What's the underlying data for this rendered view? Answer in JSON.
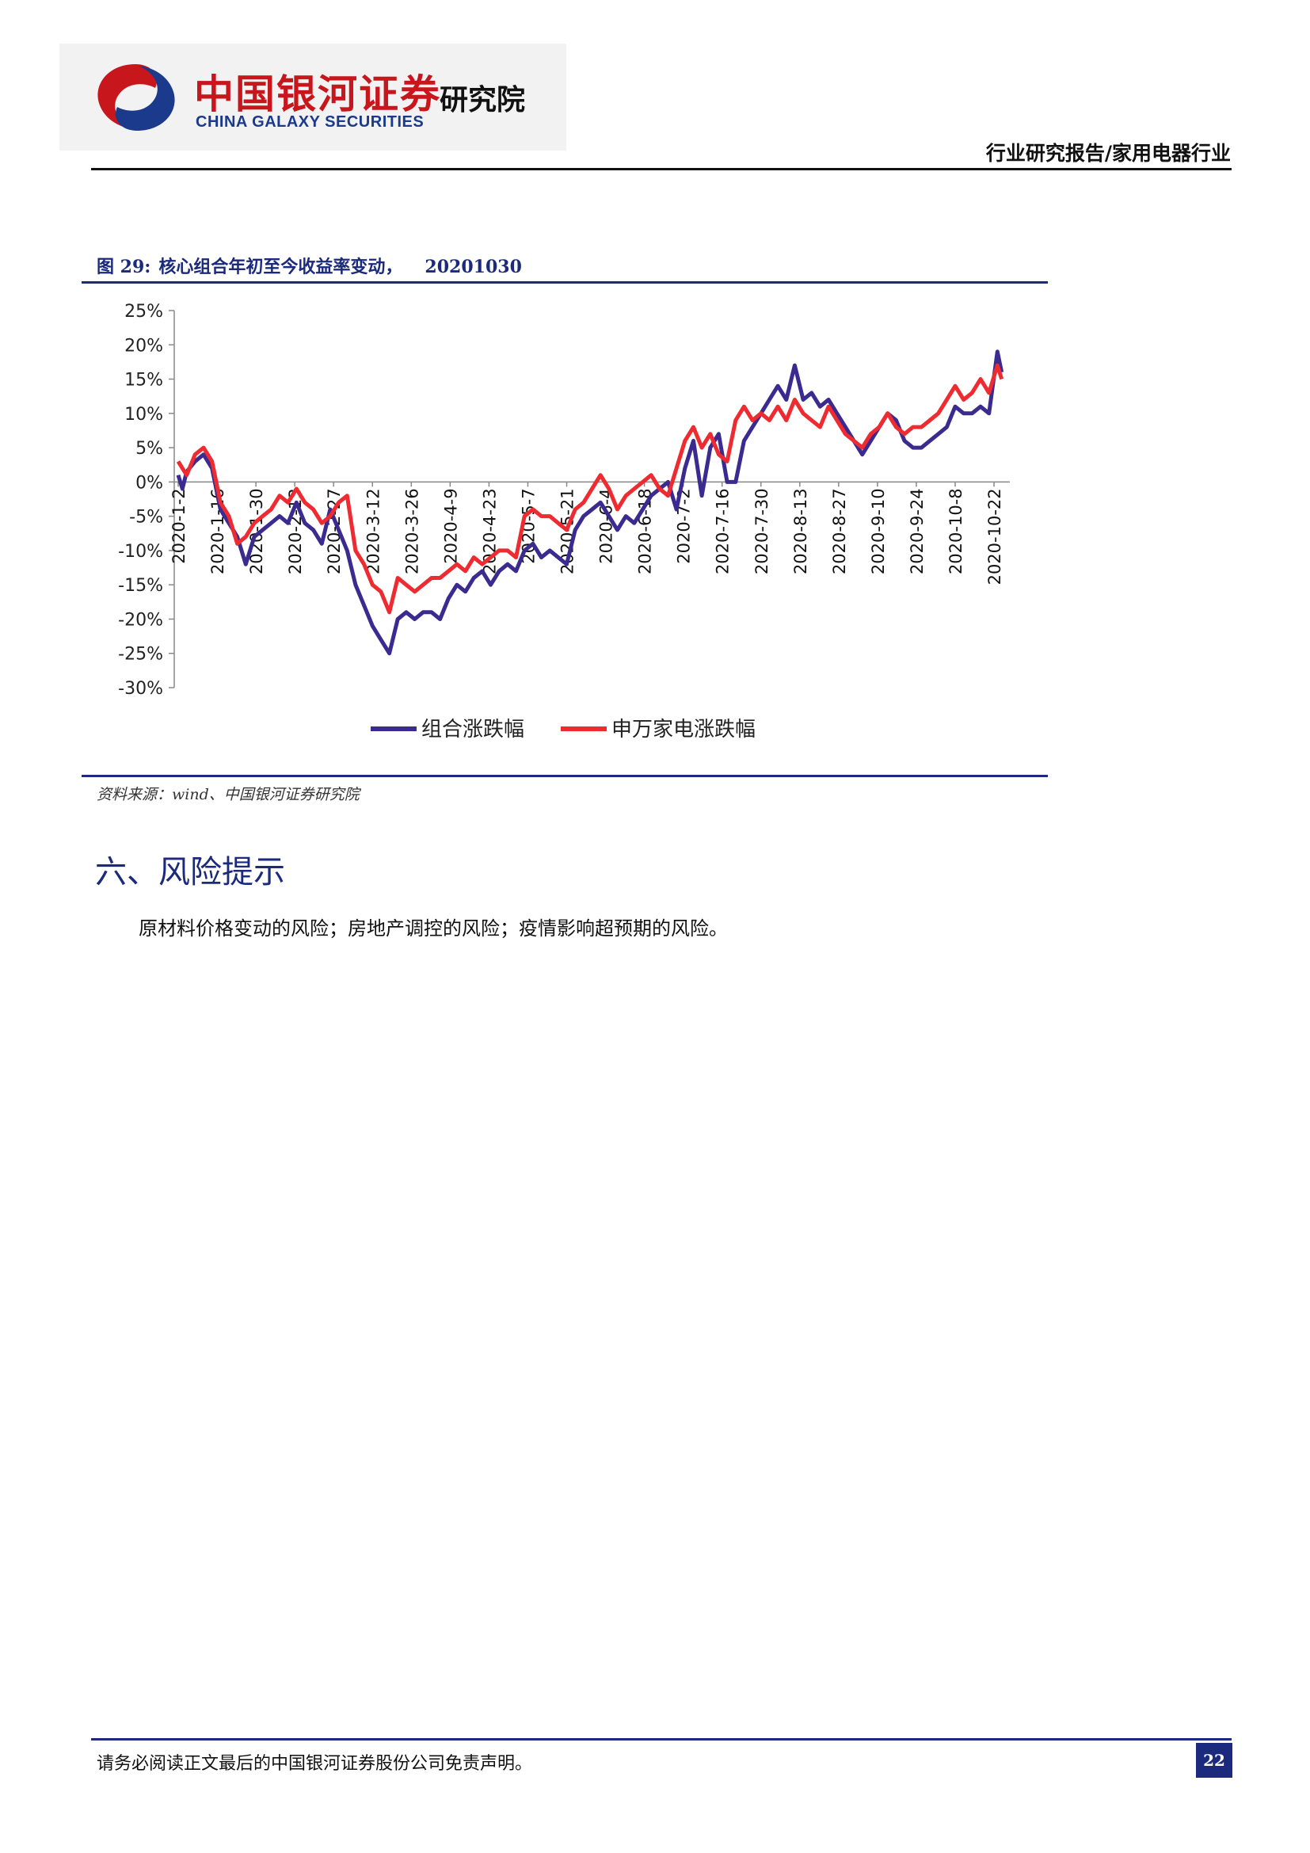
{
  "header": {
    "logo_cn": "中国银河证券",
    "logo_en": "CHINA GALAXY SECURITIES",
    "institute": "研究院",
    "report_type": "行业研究报告/家用电器行业",
    "brand_red": "#c8161d",
    "brand_blue": "#1b2a7c"
  },
  "figure": {
    "number": "图 29:",
    "title": "核心组合年初至今收益率变动，",
    "date": "20201030",
    "source": "资料来源：wind、中国银河证券研究院"
  },
  "chart_data": {
    "type": "line",
    "x_labels": [
      "2020-1-2",
      "2020-1-16",
      "2020-1-30",
      "2020-2-13",
      "2020-2-27",
      "2020-3-12",
      "2020-3-26",
      "2020-4-9",
      "2020-4-23",
      "2020-5-7",
      "2020-5-21",
      "2020-6-4",
      "2020-6-18",
      "2020-7-2",
      "2020-7-16",
      "2020-7-30",
      "2020-8-13",
      "2020-8-27",
      "2020-9-10",
      "2020-9-24",
      "2020-10-8",
      "2020-10-22"
    ],
    "y_ticks": [
      "25%",
      "20%",
      "15%",
      "10%",
      "5%",
      "0%",
      "-5%",
      "-10%",
      "-15%",
      "-20%",
      "-25%",
      "-30%"
    ],
    "ylim": [
      -30,
      25
    ],
    "legend_position": "bottom",
    "series": [
      {
        "name": "组合涨跌幅",
        "color": "#3b2a8f",
        "points": [
          [
            0,
            1
          ],
          [
            0.5,
            -1
          ],
          [
            1,
            1.5
          ],
          [
            2,
            3
          ],
          [
            3,
            4
          ],
          [
            4,
            2
          ],
          [
            5,
            -4
          ],
          [
            6,
            -6
          ],
          [
            7,
            -8
          ],
          [
            8,
            -12
          ],
          [
            9,
            -8
          ],
          [
            10,
            -7
          ],
          [
            11,
            -6
          ],
          [
            12,
            -5
          ],
          [
            13,
            -6
          ],
          [
            14,
            -3
          ],
          [
            15,
            -6
          ],
          [
            16,
            -7
          ],
          [
            17,
            -9
          ],
          [
            18,
            -4
          ],
          [
            19,
            -7
          ],
          [
            20,
            -10
          ],
          [
            21,
            -15
          ],
          [
            22,
            -18
          ],
          [
            23,
            -21
          ],
          [
            24,
            -23
          ],
          [
            25,
            -25
          ],
          [
            26,
            -20
          ],
          [
            27,
            -19
          ],
          [
            28,
            -20
          ],
          [
            29,
            -19
          ],
          [
            30,
            -19
          ],
          [
            31,
            -20
          ],
          [
            32,
            -17
          ],
          [
            33,
            -15
          ],
          [
            34,
            -16
          ],
          [
            35,
            -14
          ],
          [
            36,
            -13
          ],
          [
            37,
            -15
          ],
          [
            38,
            -13
          ],
          [
            39,
            -12
          ],
          [
            40,
            -13
          ],
          [
            41,
            -10
          ],
          [
            42,
            -9
          ],
          [
            43,
            -11
          ],
          [
            44,
            -10
          ],
          [
            45,
            -11
          ],
          [
            46,
            -12
          ],
          [
            47,
            -7
          ],
          [
            48,
            -5
          ],
          [
            49,
            -4
          ],
          [
            50,
            -3
          ],
          [
            51,
            -5
          ],
          [
            52,
            -7
          ],
          [
            53,
            -5
          ],
          [
            54,
            -6
          ],
          [
            55,
            -4
          ],
          [
            56,
            -2
          ],
          [
            57,
            -1
          ],
          [
            58,
            0
          ],
          [
            59,
            -4
          ],
          [
            60,
            2
          ],
          [
            61,
            6
          ],
          [
            62,
            -2
          ],
          [
            63,
            5
          ],
          [
            64,
            7
          ],
          [
            65,
            0
          ],
          [
            66,
            0
          ],
          [
            67,
            6
          ],
          [
            68,
            8
          ],
          [
            69,
            10
          ],
          [
            70,
            12
          ],
          [
            71,
            14
          ],
          [
            72,
            12
          ],
          [
            73,
            17
          ],
          [
            74,
            12
          ],
          [
            75,
            13
          ],
          [
            76,
            11
          ],
          [
            77,
            12
          ],
          [
            78,
            10
          ],
          [
            79,
            8
          ],
          [
            80,
            6
          ],
          [
            81,
            4
          ],
          [
            82,
            6
          ],
          [
            83,
            8
          ],
          [
            84,
            10
          ],
          [
            85,
            9
          ],
          [
            86,
            6
          ],
          [
            87,
            5
          ],
          [
            88,
            5
          ],
          [
            89,
            6
          ],
          [
            90,
            7
          ],
          [
            91,
            8
          ],
          [
            92,
            11
          ],
          [
            93,
            10
          ],
          [
            94,
            10
          ],
          [
            95,
            11
          ],
          [
            96,
            10
          ],
          [
            97,
            19
          ],
          [
            97.5,
            16
          ]
        ]
      },
      {
        "name": "申万家电涨跌幅",
        "color": "#ee2b30",
        "points": [
          [
            0,
            3
          ],
          [
            0.5,
            2
          ],
          [
            1,
            1
          ],
          [
            2,
            4
          ],
          [
            3,
            5
          ],
          [
            4,
            3
          ],
          [
            5,
            -3
          ],
          [
            6,
            -5
          ],
          [
            7,
            -9
          ],
          [
            8,
            -8
          ],
          [
            9,
            -6
          ],
          [
            10,
            -5
          ],
          [
            11,
            -4
          ],
          [
            12,
            -2
          ],
          [
            13,
            -3
          ],
          [
            14,
            -1
          ],
          [
            15,
            -3
          ],
          [
            16,
            -4
          ],
          [
            17,
            -6
          ],
          [
            18,
            -5
          ],
          [
            19,
            -3
          ],
          [
            20,
            -2
          ],
          [
            21,
            -10
          ],
          [
            22,
            -12
          ],
          [
            23,
            -15
          ],
          [
            24,
            -16
          ],
          [
            25,
            -19
          ],
          [
            26,
            -14
          ],
          [
            27,
            -15
          ],
          [
            28,
            -16
          ],
          [
            29,
            -15
          ],
          [
            30,
            -14
          ],
          [
            31,
            -14
          ],
          [
            32,
            -13
          ],
          [
            33,
            -12
          ],
          [
            34,
            -13
          ],
          [
            35,
            -11
          ],
          [
            36,
            -12
          ],
          [
            37,
            -11
          ],
          [
            38,
            -10
          ],
          [
            39,
            -10
          ],
          [
            40,
            -11
          ],
          [
            41,
            -5
          ],
          [
            42,
            -4
          ],
          [
            43,
            -5
          ],
          [
            44,
            -5
          ],
          [
            45,
            -6
          ],
          [
            46,
            -7
          ],
          [
            47,
            -4
          ],
          [
            48,
            -3
          ],
          [
            49,
            -1
          ],
          [
            50,
            1
          ],
          [
            51,
            -1
          ],
          [
            52,
            -4
          ],
          [
            53,
            -2
          ],
          [
            54,
            -1
          ],
          [
            55,
            0
          ],
          [
            56,
            1
          ],
          [
            57,
            -1
          ],
          [
            58,
            -2
          ],
          [
            59,
            2
          ],
          [
            60,
            6
          ],
          [
            61,
            8
          ],
          [
            62,
            5
          ],
          [
            63,
            7
          ],
          [
            64,
            4
          ],
          [
            65,
            3
          ],
          [
            66,
            9
          ],
          [
            67,
            11
          ],
          [
            68,
            9
          ],
          [
            69,
            10
          ],
          [
            70,
            9
          ],
          [
            71,
            11
          ],
          [
            72,
            9
          ],
          [
            73,
            12
          ],
          [
            74,
            10
          ],
          [
            75,
            9
          ],
          [
            76,
            8
          ],
          [
            77,
            11
          ],
          [
            78,
            9
          ],
          [
            79,
            7
          ],
          [
            80,
            6
          ],
          [
            81,
            5
          ],
          [
            82,
            7
          ],
          [
            83,
            8
          ],
          [
            84,
            10
          ],
          [
            85,
            8
          ],
          [
            86,
            7
          ],
          [
            87,
            8
          ],
          [
            88,
            8
          ],
          [
            89,
            9
          ],
          [
            90,
            10
          ],
          [
            91,
            12
          ],
          [
            92,
            14
          ],
          [
            93,
            12
          ],
          [
            94,
            13
          ],
          [
            95,
            15
          ],
          [
            96,
            13
          ],
          [
            97,
            17
          ],
          [
            97.5,
            15
          ]
        ]
      }
    ]
  },
  "section": {
    "title": "六、风险提示",
    "body": "原材料价格变动的风险；房地产调控的风险；疫情影响超预期的风险。"
  },
  "footer": {
    "disclaimer": "请务必阅读正文最后的中国银河证券股份公司免责声明。",
    "page": "22"
  }
}
